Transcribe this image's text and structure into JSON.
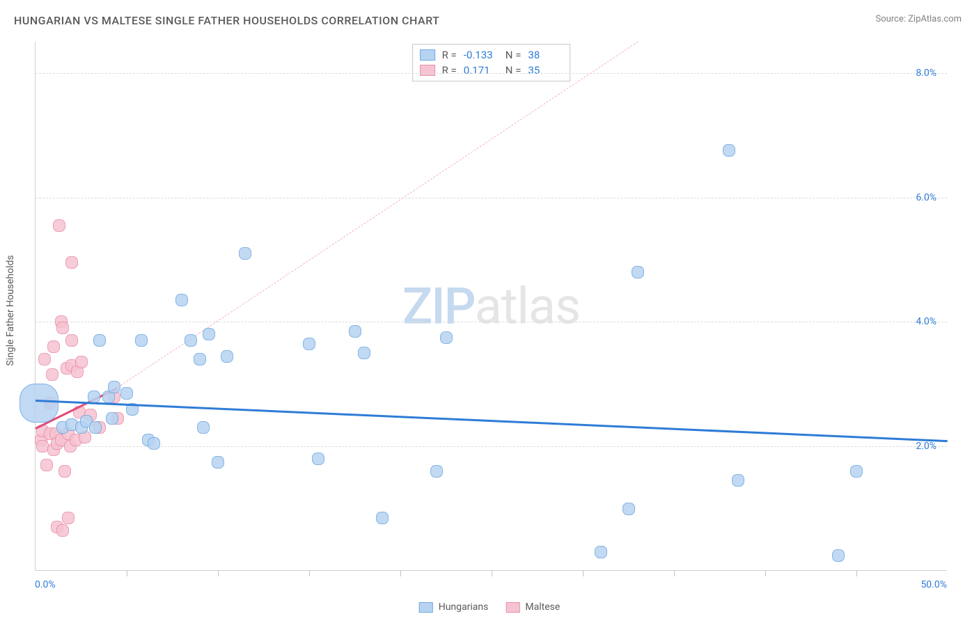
{
  "title": "HUNGARIAN VS MALTESE SINGLE FATHER HOUSEHOLDS CORRELATION CHART",
  "source": "Source: ZipAtlas.com",
  "y_axis_label": "Single Father Households",
  "watermark": {
    "part1": "ZIP",
    "part2": "atlas"
  },
  "chart": {
    "type": "scatter",
    "background_color": "#ffffff",
    "grid_color": "#dcdcdc",
    "axis_color": "#d0d0d0",
    "tick_label_color": "#2e7cd6",
    "text_color": "#5a5a5a",
    "xlim": [
      0,
      50
    ],
    "ylim": [
      0,
      8.5
    ],
    "x_ticks_labeled": [
      {
        "pos": 0,
        "label": "0.0%"
      },
      {
        "pos": 50,
        "label": "50.0%"
      }
    ],
    "x_ticks_minor": [
      5,
      10,
      15,
      20,
      25,
      30,
      35,
      40,
      45
    ],
    "y_ticks": [
      {
        "pos": 2,
        "label": "2.0%"
      },
      {
        "pos": 4,
        "label": "4.0%"
      },
      {
        "pos": 6,
        "label": "6.0%"
      },
      {
        "pos": 8,
        "label": "8.0%"
      }
    ],
    "series": [
      {
        "name": "Hungarians",
        "fill": "#b7d3f2",
        "stroke": "#6fa8e0",
        "trend_color": "#2e7cd6",
        "trend_dash_color": "#b7d3f2",
        "marker_r": 9,
        "stats": {
          "R": "-0.133",
          "N": "38"
        },
        "trend": {
          "x1": 0,
          "y1": 2.75,
          "x2": 50,
          "y2": 2.1
        },
        "trend_extrap": null,
        "points": [
          {
            "x": 0.2,
            "y": 2.7,
            "r": 28
          },
          {
            "x": 1.5,
            "y": 2.3
          },
          {
            "x": 2.0,
            "y": 2.35
          },
          {
            "x": 2.5,
            "y": 2.3
          },
          {
            "x": 2.8,
            "y": 2.4
          },
          {
            "x": 3.3,
            "y": 2.3
          },
          {
            "x": 3.2,
            "y": 2.8
          },
          {
            "x": 3.5,
            "y": 3.7
          },
          {
            "x": 4.0,
            "y": 2.8
          },
          {
            "x": 4.2,
            "y": 2.45
          },
          {
            "x": 4.3,
            "y": 2.95
          },
          {
            "x": 5.0,
            "y": 2.85
          },
          {
            "x": 5.3,
            "y": 2.6
          },
          {
            "x": 5.8,
            "y": 3.7
          },
          {
            "x": 6.2,
            "y": 2.1
          },
          {
            "x": 6.5,
            "y": 2.05
          },
          {
            "x": 8.0,
            "y": 4.35
          },
          {
            "x": 8.5,
            "y": 3.7
          },
          {
            "x": 9.0,
            "y": 3.4
          },
          {
            "x": 9.2,
            "y": 2.3
          },
          {
            "x": 9.5,
            "y": 3.8
          },
          {
            "x": 10.0,
            "y": 1.75
          },
          {
            "x": 10.5,
            "y": 3.45
          },
          {
            "x": 11.5,
            "y": 5.1
          },
          {
            "x": 15.0,
            "y": 3.65
          },
          {
            "x": 15.5,
            "y": 1.8
          },
          {
            "x": 17.5,
            "y": 3.85
          },
          {
            "x": 18.0,
            "y": 3.5
          },
          {
            "x": 19.0,
            "y": 0.85
          },
          {
            "x": 22.0,
            "y": 1.6
          },
          {
            "x": 22.5,
            "y": 3.75
          },
          {
            "x": 31.0,
            "y": 0.3
          },
          {
            "x": 32.5,
            "y": 1.0
          },
          {
            "x": 33.0,
            "y": 4.8
          },
          {
            "x": 38.0,
            "y": 6.75
          },
          {
            "x": 38.5,
            "y": 1.45
          },
          {
            "x": 44.0,
            "y": 0.25
          },
          {
            "x": 45.0,
            "y": 1.6
          }
        ]
      },
      {
        "name": "Maltese",
        "fill": "#f6c3d1",
        "stroke": "#e88fa8",
        "trend_color": "#e14b77",
        "trend_dash_color": "#f3b4c5",
        "marker_r": 9,
        "stats": {
          "R": "0.171",
          "N": "35"
        },
        "trend": {
          "x1": 0,
          "y1": 2.3,
          "x2": 4.5,
          "y2": 2.95
        },
        "trend_extrap": {
          "x1": 4.5,
          "y1": 2.95,
          "x2": 33,
          "y2": 8.5
        },
        "points": [
          {
            "x": 0.3,
            "y": 2.1
          },
          {
            "x": 0.4,
            "y": 2.25
          },
          {
            "x": 0.4,
            "y": 2.0
          },
          {
            "x": 0.5,
            "y": 3.4
          },
          {
            "x": 0.6,
            "y": 1.7
          },
          {
            "x": 0.8,
            "y": 2.2
          },
          {
            "x": 0.8,
            "y": 2.7
          },
          {
            "x": 0.9,
            "y": 3.15
          },
          {
            "x": 1.0,
            "y": 1.95
          },
          {
            "x": 1.0,
            "y": 3.6
          },
          {
            "x": 1.1,
            "y": 2.2
          },
          {
            "x": 1.2,
            "y": 2.05
          },
          {
            "x": 1.2,
            "y": 0.7
          },
          {
            "x": 1.3,
            "y": 5.55
          },
          {
            "x": 1.4,
            "y": 2.1
          },
          {
            "x": 1.4,
            "y": 4.0
          },
          {
            "x": 1.5,
            "y": 0.65
          },
          {
            "x": 1.5,
            "y": 3.9
          },
          {
            "x": 1.6,
            "y": 1.6
          },
          {
            "x": 1.7,
            "y": 3.25
          },
          {
            "x": 1.8,
            "y": 2.2
          },
          {
            "x": 1.8,
            "y": 0.85
          },
          {
            "x": 1.9,
            "y": 2.0
          },
          {
            "x": 2.0,
            "y": 3.3
          },
          {
            "x": 2.0,
            "y": 4.95
          },
          {
            "x": 2.0,
            "y": 3.7
          },
          {
            "x": 2.2,
            "y": 2.1
          },
          {
            "x": 2.3,
            "y": 3.2
          },
          {
            "x": 2.4,
            "y": 2.55
          },
          {
            "x": 2.5,
            "y": 3.35
          },
          {
            "x": 2.7,
            "y": 2.15
          },
          {
            "x": 3.0,
            "y": 2.5
          },
          {
            "x": 3.5,
            "y": 2.3
          },
          {
            "x": 4.3,
            "y": 2.8
          },
          {
            "x": 4.5,
            "y": 2.45
          }
        ]
      }
    ]
  },
  "stats_box": {
    "rows": [
      {
        "swatch_fill": "#b7d3f2",
        "swatch_border": "#6fa8e0",
        "R_label": "R =",
        "R": "-0.133",
        "N_label": "N =",
        "N": "38"
      },
      {
        "swatch_fill": "#f6c3d1",
        "swatch_border": "#e88fa8",
        "R_label": "R =",
        "R": "0.171",
        "N_label": "N =",
        "N": "35"
      }
    ]
  },
  "bottom_legend": [
    {
      "swatch_fill": "#b7d3f2",
      "swatch_border": "#6fa8e0",
      "label": "Hungarians"
    },
    {
      "swatch_fill": "#f6c3d1",
      "swatch_border": "#e88fa8",
      "label": "Maltese"
    }
  ]
}
